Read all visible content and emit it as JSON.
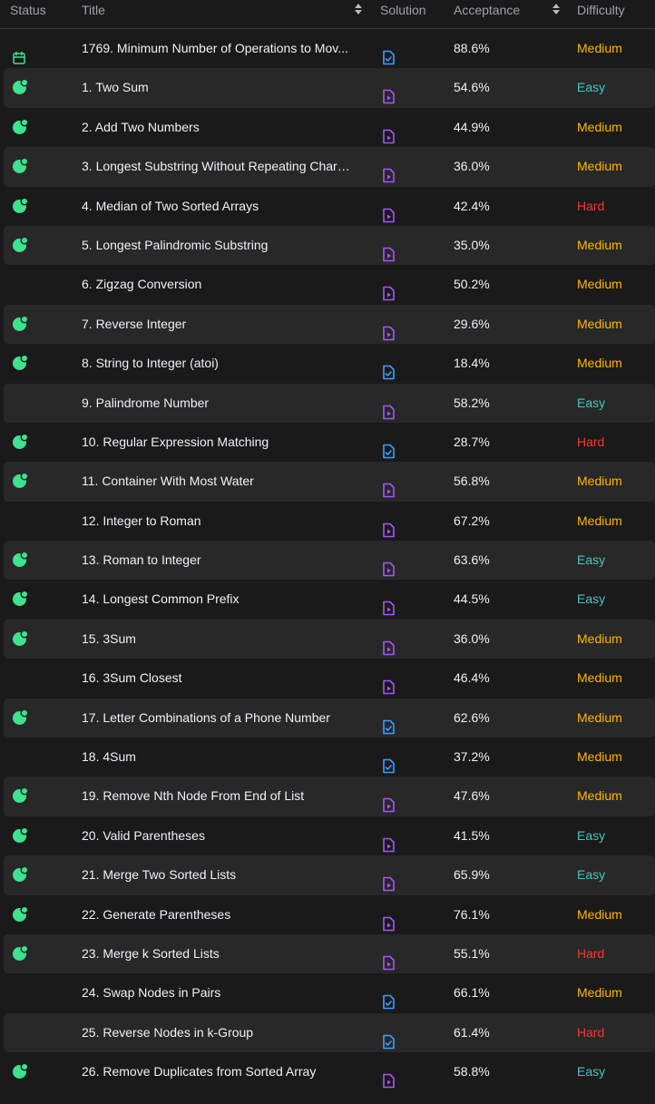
{
  "header": {
    "status": "Status",
    "title": "Title",
    "solution": "Solution",
    "acceptance": "Acceptance",
    "difficulty": "Difficulty"
  },
  "colors": {
    "easy": "#46c6c2",
    "medium": "#ffb800",
    "hard": "#f63737",
    "solved": "#3ee28f",
    "article_icon": "#a855f7",
    "solution_icon": "#3b9eff"
  },
  "rows": [
    {
      "title": "1769. Minimum Number of Operations to Mov...",
      "acceptance": "88.6%",
      "difficulty": "Medium",
      "status": "calendar-icon",
      "solution": "check"
    },
    {
      "title": "1. Two Sum",
      "acceptance": "54.6%",
      "difficulty": "Easy",
      "status": "solved-icon",
      "solution": "video"
    },
    {
      "title": "2. Add Two Numbers",
      "acceptance": "44.9%",
      "difficulty": "Medium",
      "status": "solved-icon",
      "solution": "video"
    },
    {
      "title": "3. Longest Substring Without Repeating Chara...",
      "acceptance": "36.0%",
      "difficulty": "Medium",
      "status": "solved-icon",
      "solution": "video"
    },
    {
      "title": "4. Median of Two Sorted Arrays",
      "acceptance": "42.4%",
      "difficulty": "Hard",
      "status": "solved-icon",
      "solution": "video"
    },
    {
      "title": "5. Longest Palindromic Substring",
      "acceptance": "35.0%",
      "difficulty": "Medium",
      "status": "solved-icon",
      "solution": "video"
    },
    {
      "title": "6. Zigzag Conversion",
      "acceptance": "50.2%",
      "difficulty": "Medium",
      "status": "",
      "solution": "video"
    },
    {
      "title": "7. Reverse Integer",
      "acceptance": "29.6%",
      "difficulty": "Medium",
      "status": "solved-icon",
      "solution": "video"
    },
    {
      "title": "8. String to Integer (atoi)",
      "acceptance": "18.4%",
      "difficulty": "Medium",
      "status": "solved-icon",
      "solution": "check"
    },
    {
      "title": "9. Palindrome Number",
      "acceptance": "58.2%",
      "difficulty": "Easy",
      "status": "",
      "solution": "video"
    },
    {
      "title": "10. Regular Expression Matching",
      "acceptance": "28.7%",
      "difficulty": "Hard",
      "status": "solved-icon",
      "solution": "check"
    },
    {
      "title": "11. Container With Most Water",
      "acceptance": "56.8%",
      "difficulty": "Medium",
      "status": "solved-icon",
      "solution": "video"
    },
    {
      "title": "12. Integer to Roman",
      "acceptance": "67.2%",
      "difficulty": "Medium",
      "status": "",
      "solution": "video"
    },
    {
      "title": "13. Roman to Integer",
      "acceptance": "63.6%",
      "difficulty": "Easy",
      "status": "solved-icon",
      "solution": "video"
    },
    {
      "title": "14. Longest Common Prefix",
      "acceptance": "44.5%",
      "difficulty": "Easy",
      "status": "solved-icon",
      "solution": "video"
    },
    {
      "title": "15. 3Sum",
      "acceptance": "36.0%",
      "difficulty": "Medium",
      "status": "solved-icon",
      "solution": "video"
    },
    {
      "title": "16. 3Sum Closest",
      "acceptance": "46.4%",
      "difficulty": "Medium",
      "status": "",
      "solution": "video"
    },
    {
      "title": "17. Letter Combinations of a Phone Number",
      "acceptance": "62.6%",
      "difficulty": "Medium",
      "status": "solved-icon",
      "solution": "check"
    },
    {
      "title": "18. 4Sum",
      "acceptance": "37.2%",
      "difficulty": "Medium",
      "status": "",
      "solution": "check"
    },
    {
      "title": "19. Remove Nth Node From End of List",
      "acceptance": "47.6%",
      "difficulty": "Medium",
      "status": "solved-icon",
      "solution": "video"
    },
    {
      "title": "20. Valid Parentheses",
      "acceptance": "41.5%",
      "difficulty": "Easy",
      "status": "solved-icon",
      "solution": "video"
    },
    {
      "title": "21. Merge Two Sorted Lists",
      "acceptance": "65.9%",
      "difficulty": "Easy",
      "status": "solved-icon",
      "solution": "video"
    },
    {
      "title": "22. Generate Parentheses",
      "acceptance": "76.1%",
      "difficulty": "Medium",
      "status": "solved-icon",
      "solution": "video"
    },
    {
      "title": "23. Merge k Sorted Lists",
      "acceptance": "55.1%",
      "difficulty": "Hard",
      "status": "solved-icon",
      "solution": "video"
    },
    {
      "title": "24. Swap Nodes in Pairs",
      "acceptance": "66.1%",
      "difficulty": "Medium",
      "status": "",
      "solution": "check"
    },
    {
      "title": "25. Reverse Nodes in k-Group",
      "acceptance": "61.4%",
      "difficulty": "Hard",
      "status": "",
      "solution": "check"
    },
    {
      "title": "26. Remove Duplicates from Sorted Array",
      "acceptance": "58.8%",
      "difficulty": "Easy",
      "status": "solved-icon",
      "solution": "video"
    }
  ]
}
